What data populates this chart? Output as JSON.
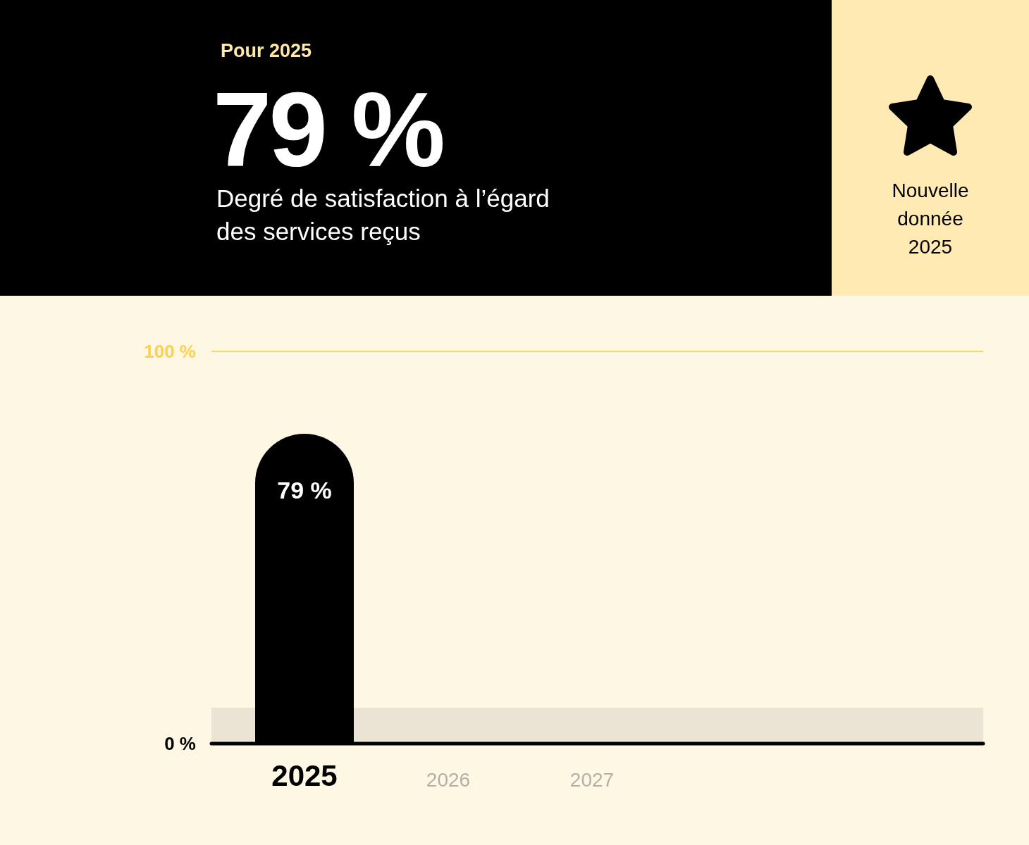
{
  "chart_data": {
    "type": "bar",
    "title": "79 %",
    "subtitle": "Degré de satisfaction à l’égard des services reçus",
    "annotations": [
      "Pour 2025",
      "Nouvelle donnée 2025"
    ],
    "categories": [
      "2025",
      "2026",
      "2027"
    ],
    "values": [
      79,
      null,
      null
    ],
    "value_labels": [
      "79 %",
      null,
      null
    ],
    "color": "#000000",
    "ylim": [
      0,
      100
    ],
    "yticks": [
      {
        "value": 0,
        "label": "0 %"
      },
      {
        "value": 100,
        "label": "100 %"
      }
    ],
    "ref_lines": [
      {
        "axis": "y",
        "value": 100,
        "color": "#fdd65a"
      }
    ]
  }
}
